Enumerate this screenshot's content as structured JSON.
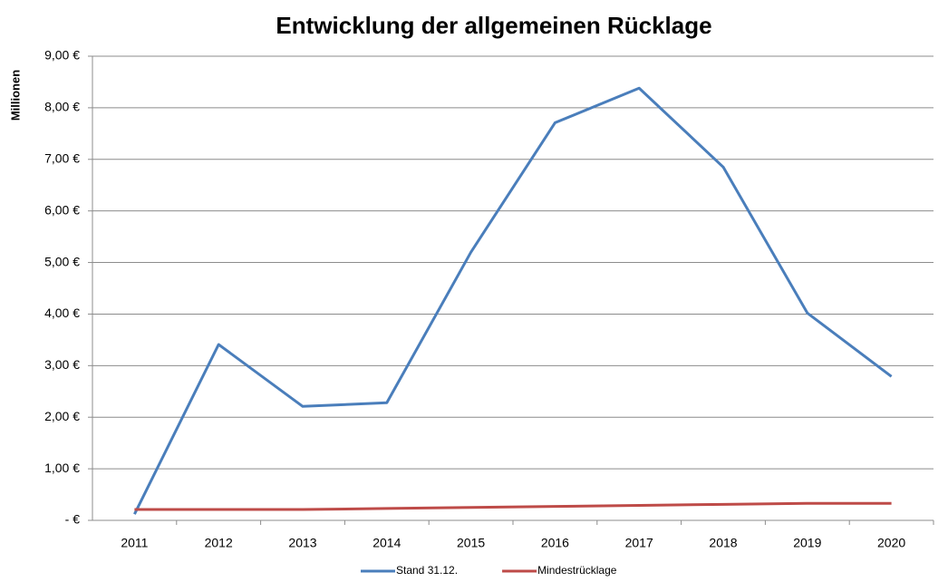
{
  "chart_data": {
    "type": "line",
    "title": "Entwicklung der allgemeinen Rücklage",
    "y_label": "Millionen",
    "categories": [
      "2011",
      "2012",
      "2013",
      "2014",
      "2015",
      "2016",
      "2017",
      "2018",
      "2019",
      "2020"
    ],
    "series": [
      {
        "name": "Stand 31.12.",
        "color": "#4a7ebb",
        "values": [
          0.12,
          3.41,
          2.21,
          2.28,
          5.2,
          7.71,
          8.38,
          6.85,
          4.02,
          2.79
        ]
      },
      {
        "name": "Mindestrücklage",
        "color": "#be4b48",
        "values": [
          0.21,
          0.21,
          0.21,
          0.23,
          0.25,
          0.27,
          0.29,
          0.31,
          0.33,
          0.33
        ]
      }
    ],
    "ylim": [
      0,
      9
    ],
    "yticks": [
      {
        "value": 0,
        "label": "-  €"
      },
      {
        "value": 1,
        "label": "1,00 €"
      },
      {
        "value": 2,
        "label": "2,00 €"
      },
      {
        "value": 3,
        "label": "3,00 €"
      },
      {
        "value": 4,
        "label": "4,00 €"
      },
      {
        "value": 5,
        "label": "5,00 €"
      },
      {
        "value": 6,
        "label": "6,00 €"
      },
      {
        "value": 7,
        "label": "7,00 €"
      },
      {
        "value": 8,
        "label": "8,00 €"
      },
      {
        "value": 9,
        "label": "9,00 €"
      }
    ],
    "grid": true,
    "legend": "bottom"
  }
}
